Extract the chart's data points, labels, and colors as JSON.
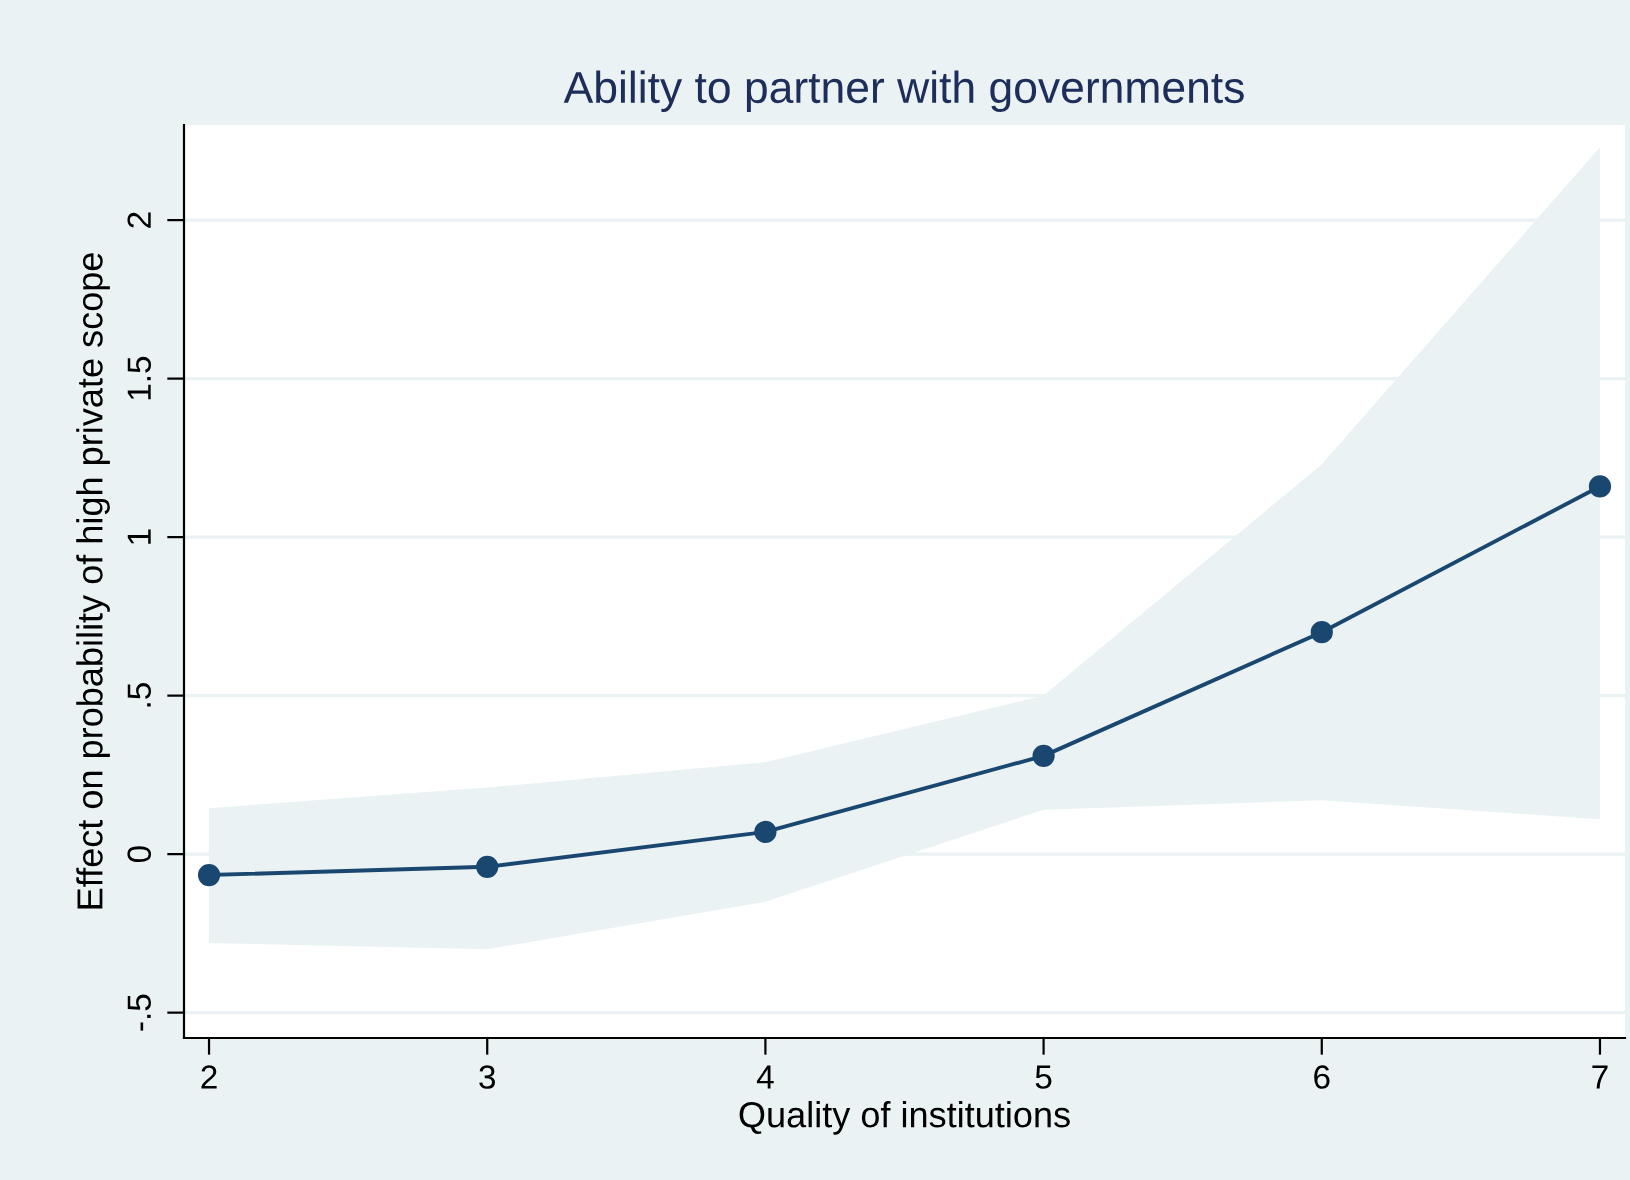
{
  "chart_data": {
    "type": "line",
    "title": "Ability to partner with governments",
    "xlabel": "Quality of institutions",
    "ylabel": "Effect on probability of high private scope",
    "x": [
      2,
      3,
      4,
      5,
      6,
      7
    ],
    "series": [
      {
        "color": "#1a476f",
        "values": [
          -0.066,
          -0.04,
          0.07,
          0.31,
          0.7,
          1.16
        ],
        "lower": [
          -0.28,
          -0.3,
          -0.15,
          0.14,
          0.17,
          0.11
        ],
        "upper": [
          0.145,
          0.21,
          0.29,
          0.5,
          1.23,
          2.23
        ]
      }
    ],
    "xlim": [
      1.91,
      7.09
    ],
    "ylim": [
      -0.58,
      2.3
    ],
    "xticks": [
      2,
      3,
      4,
      5,
      6,
      7
    ],
    "yticks": [
      {
        "value": -0.5,
        "label": "-.5"
      },
      0,
      {
        "value": 0.5,
        "label": ".5"
      },
      1,
      1.5,
      2
    ],
    "grid": "y",
    "marker": "circle",
    "line_style": "solid"
  }
}
